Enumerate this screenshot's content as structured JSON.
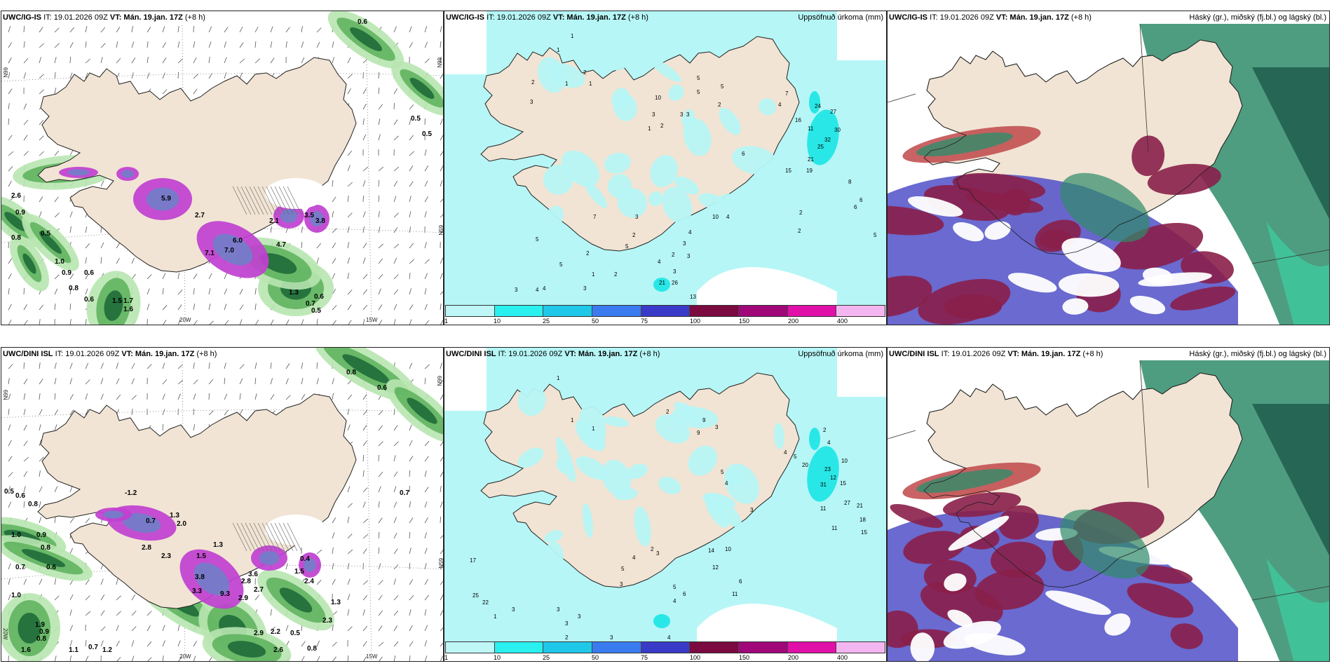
{
  "panels": [
    {
      "header_model": "UWC/IG-IS",
      "header_it": "IT: 19.01.2026 09Z",
      "header_vt_label": "VT:",
      "header_vt": "Mán. 19.jan. 17Z",
      "header_lead": "(+8 h)",
      "right_title": "",
      "lon_labels": [
        "20W",
        "15W"
      ],
      "lat_labels": [
        "66N",
        "66N",
        "65N"
      ],
      "values": [
        "0.6",
        "0.5",
        "0.5",
        "2.6",
        "0.9",
        "0.8",
        "0.5",
        "1.0",
        "0.9",
        "0.6",
        "0.8",
        "0.6",
        "1.5",
        "1.7",
        "1.6",
        "0.7",
        "0.6",
        "0.5",
        "1.3",
        "4.7",
        "2.7",
        "2.1",
        "3.5",
        "3.8",
        "6.0",
        "5.9",
        "7.0",
        "7.1"
      ]
    },
    {
      "header_model": "UWC/IG-IS",
      "header_it": "IT: 19.01.2026 09Z",
      "header_vt_label": "VT:",
      "header_vt": "Mán. 19.jan. 17Z",
      "header_lead": "(+8 h)",
      "right_title": "Uppsöfnuð úrkoma (mm)",
      "values": [
        "1",
        "1",
        "2",
        "1",
        "1",
        "2",
        "3",
        "10",
        "5",
        "5",
        "3",
        "3",
        "2",
        "3",
        "1",
        "5",
        "2",
        "6",
        "4",
        "7",
        "24",
        "16",
        "27",
        "11",
        "30",
        "32",
        "25",
        "21",
        "19",
        "15",
        "8",
        "6",
        "6",
        "5",
        "2",
        "2",
        "10",
        "4",
        "4",
        "3",
        "3",
        "2",
        "7",
        "5",
        "4",
        "3",
        "3",
        "2",
        "13",
        "26",
        "21",
        "5",
        "2",
        "1",
        "2",
        "3",
        "4",
        "5",
        "4",
        "3"
      ]
    },
    {
      "header_model": "UWC/IG-IS",
      "header_it": "IT: 19.01.2026 09Z",
      "header_vt_label": "VT:",
      "header_vt": "Mán. 19.jan. 17Z",
      "header_lead": "(+8 h)",
      "right_title": "Háský (gr.), miðský (fj.bl.) og lágský (bl.)"
    },
    {
      "header_model": "UWC/DINI ISL",
      "header_it": "IT: 19.01.2026 09Z",
      "header_vt_label": "VT:",
      "header_vt": "Mán. 19.jan. 17Z",
      "header_lead": "(+8 h)",
      "right_title": "",
      "lon_labels": [
        "20W",
        "15W"
      ],
      "lat_labels": [
        "66N",
        "66N",
        "65N",
        "20W"
      ],
      "values": [
        "0.8",
        "0.6",
        "0.7",
        "0.5",
        "0.6",
        "0.8",
        "1.0",
        "0.6",
        "-1.2",
        "0.7",
        "1.3",
        "2.0",
        "0.9",
        "0.8",
        "0.7",
        "2.8",
        "2.3",
        "1.5",
        "1.3",
        "3.8",
        "3.3",
        "9.3",
        "2.9",
        "2.8",
        "2.7",
        "1.5",
        "2.4",
        "3.6",
        "0.4",
        "1.0",
        "1.9",
        "0.9",
        "0.8",
        "1.6",
        "1.1",
        "0.7",
        "1.2",
        "2.9",
        "2.2",
        "2.6",
        "0.5",
        "0.8",
        "1.3",
        "2.3"
      ]
    },
    {
      "header_model": "UWC/DINI ISL",
      "header_it": "IT: 19.01.2026 09Z",
      "header_vt_label": "VT:",
      "header_vt": "Mán. 19.jan. 17Z",
      "header_lead": "(+8 h)",
      "right_title": "Uppsöfnuð úrkoma (mm)",
      "values": [
        "1",
        "1",
        "1",
        "2",
        "3",
        "9",
        "9",
        "5",
        "4",
        "3",
        "2",
        "4",
        "5",
        "4",
        "20",
        "23",
        "10",
        "12",
        "15",
        "31",
        "27",
        "21",
        "18",
        "15",
        "11",
        "11",
        "10",
        "14",
        "12",
        "11",
        "6",
        "5",
        "3",
        "3",
        "2",
        "4",
        "6",
        "5",
        "4",
        "3",
        "3",
        "3",
        "17",
        "25",
        "22",
        "3",
        "1",
        "2",
        "3",
        "4"
      ]
    },
    {
      "header_model": "UWC/DINI ISL",
      "header_it": "IT: 19.01.2026 09Z",
      "header_vt_label": "VT:",
      "header_vt": "Mán. 19.jan. 17Z",
      "header_lead": "(+8 h)",
      "right_title": "Háský (gr.), miðský (fj.bl.) og lágský (bl.)"
    }
  ],
  "colorbar": {
    "labels": [
      "1",
      "10",
      "25",
      "50",
      "75",
      "100",
      "150",
      "200",
      "400"
    ],
    "colors": [
      "#bff7f7",
      "#2af0f0",
      "#1fc8e8",
      "#3a7bf0",
      "#3a3ac8",
      "#7a0a40",
      "#a0087a",
      "#e010a8",
      "#f4b6f0"
    ]
  },
  "colors": {
    "land": "#f1e4d4",
    "precip_light": "#b6f6f6",
    "precip_mid": "#22e6e6",
    "green_light": "#b8e6b0",
    "green_mid": "#5ab05a",
    "green_dark": "#1f6b3a",
    "magenta": "#c040d0",
    "purple_core": "#7080c8",
    "high_cloud": "#2f8c6a",
    "mid_cloud": "#5050c8",
    "low_cloud": "#8a1f4a",
    "red_cloud": "#c0484a"
  }
}
